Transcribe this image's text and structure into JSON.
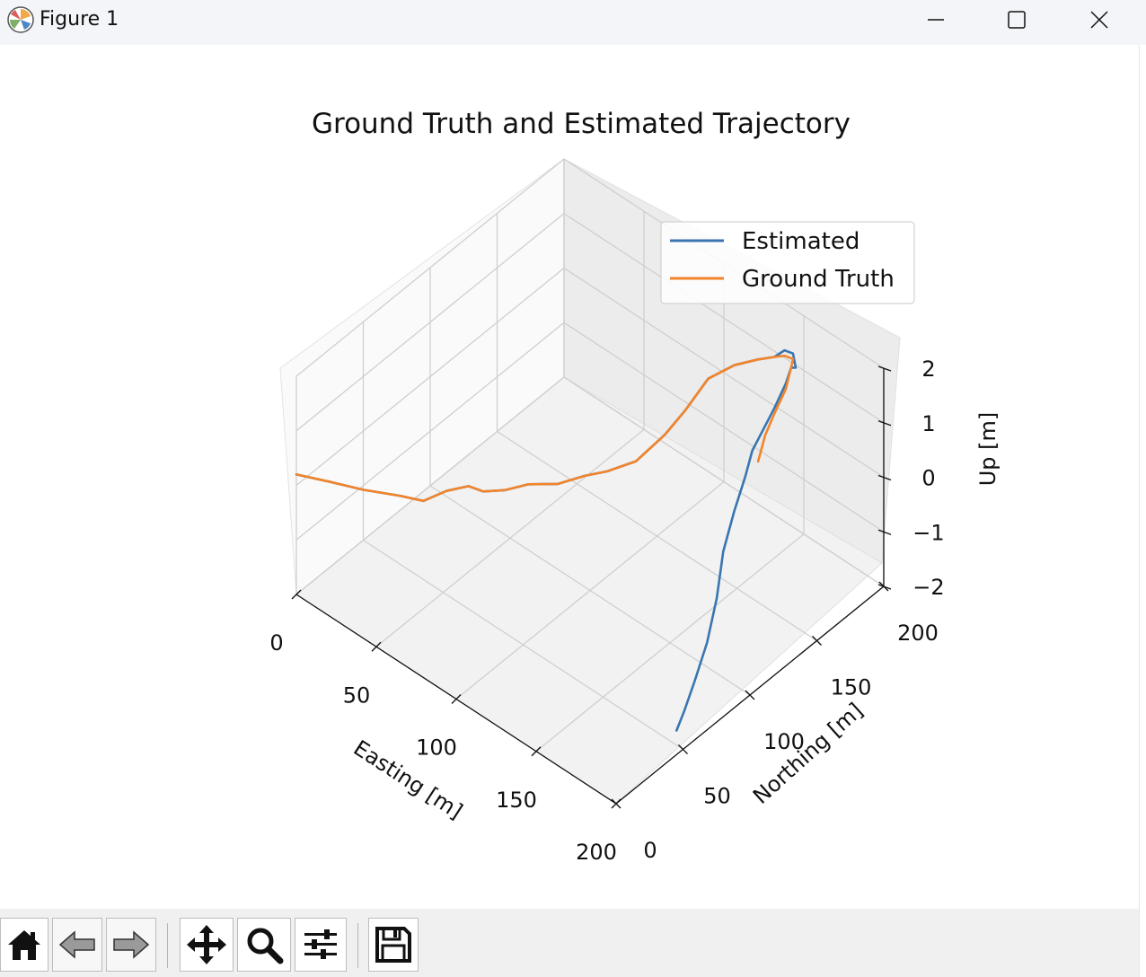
{
  "window": {
    "title": "Figure 1",
    "controls": [
      "minimize-icon",
      "maximize-icon",
      "close-icon"
    ]
  },
  "toolbar": {
    "buttons": [
      {
        "name": "home-button",
        "icon": "home-icon"
      },
      {
        "name": "back-button",
        "icon": "back-arrow-icon"
      },
      {
        "name": "forward-button",
        "icon": "forward-arrow-icon"
      },
      {
        "name": "pan-button",
        "icon": "move-icon"
      },
      {
        "name": "zoom-button",
        "icon": "zoom-icon"
      },
      {
        "name": "configure-subplots-button",
        "icon": "sliders-icon"
      },
      {
        "name": "save-button",
        "icon": "save-icon"
      }
    ]
  },
  "chart_data": {
    "type": "line",
    "projection": "3d",
    "title": "Ground Truth and Estimated Trajectory",
    "xlabel": "Easting [m]",
    "ylabel": "Northing [m]",
    "zlabel": "Up [m]",
    "xticks": [
      "0",
      "50",
      "100",
      "150",
      "200"
    ],
    "yticks": [
      "0",
      "50",
      "100",
      "150",
      "200"
    ],
    "zticks": [
      "−2",
      "−1",
      "0",
      "1",
      "2"
    ],
    "xlim": [
      0,
      200
    ],
    "ylim": [
      0,
      200
    ],
    "zlim": [
      -2,
      2
    ],
    "grid": true,
    "legend_position": "top-right",
    "colors": {
      "Estimated": "#3a75b0",
      "Ground Truth": "#f2842a"
    },
    "series": [
      {
        "name": "Estimated",
        "x": [
          0,
          12,
          25,
          38,
          46,
          52,
          60,
          65,
          72,
          80,
          90,
          98,
          104,
          112,
          120,
          126,
          132,
          140,
          148,
          155,
          158,
          160,
          160,
          163,
          168,
          172,
          175,
          178,
          182,
          186,
          190,
          196,
          200,
          203,
          205,
          206
        ],
        "y": [
          0,
          10,
          20,
          32,
          40,
          50,
          57,
          62,
          70,
          78,
          88,
          98,
          108,
          120,
          132,
          140,
          150,
          160,
          168,
          172,
          176,
          180,
          182,
          175,
          165,
          152,
          140,
          128,
          118,
          105,
          92,
          80,
          68,
          55,
          45,
          38
        ],
        "z": [
          0.2,
          0.1,
          0.0,
          -0.1,
          -0.2,
          -0.1,
          0.0,
          -0.1,
          -0.1,
          0.0,
          0.0,
          0.1,
          0.1,
          0.2,
          0.6,
          1.0,
          1.5,
          1.7,
          1.8,
          1.9,
          2.0,
          1.9,
          1.6,
          1.8,
          1.8,
          1.7,
          1.6,
          1.5,
          1.3,
          1.0,
          0.6,
          0.1,
          -0.4,
          -0.8,
          -1.1,
          -1.3
        ]
      },
      {
        "name": "Ground Truth",
        "x": [
          0,
          12,
          25,
          38,
          46,
          52,
          60,
          65,
          72,
          80,
          90,
          98,
          104,
          112,
          120,
          126,
          132,
          140,
          148,
          155,
          158,
          160,
          163,
          168,
          172,
          176,
          180
        ],
        "y": [
          0,
          10,
          20,
          32,
          40,
          50,
          57,
          62,
          70,
          78,
          88,
          98,
          108,
          120,
          132,
          140,
          150,
          160,
          168,
          172,
          176,
          180,
          175,
          165,
          152,
          140,
          130
        ],
        "z": [
          0.2,
          0.1,
          0.0,
          -0.1,
          -0.2,
          -0.1,
          0.0,
          -0.1,
          -0.1,
          0.0,
          0.0,
          0.1,
          0.1,
          0.2,
          0.6,
          1.0,
          1.5,
          1.7,
          1.8,
          1.9,
          1.9,
          1.8,
          1.8,
          1.7,
          1.6,
          1.5,
          1.3
        ]
      }
    ]
  }
}
